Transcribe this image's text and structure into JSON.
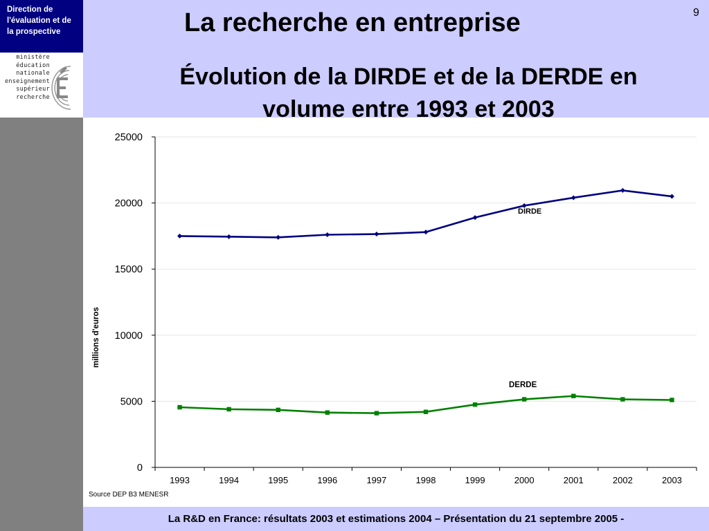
{
  "header": {
    "org_lines": [
      "Direction de",
      "l'évaluation  et de",
      "la prospective"
    ],
    "ministry_lines": [
      "ministère",
      "éducation",
      "nationale",
      "enseignement",
      "supérieur",
      "recherche"
    ],
    "title": "La recherche en entreprise",
    "page_number": "9",
    "subtitle_lines": [
      "Évolution de la DIRDE et de la DERDE en",
      "volume entre 1993 et 2003"
    ]
  },
  "footer": {
    "text": "La R&D en France: résultats 2003 et estimations 2004 – Présentation du 21 septembre 2005 -"
  },
  "colors": {
    "header_band": "#ccccff",
    "logo_bg": "#000080",
    "left_band": "#808080",
    "dirde": "#000080",
    "derde": "#008000"
  },
  "chart_data": {
    "type": "line",
    "title": "",
    "xlabel": "",
    "ylabel": "millions d'euros",
    "source": "Source DEP B3 MENESR",
    "categories": [
      "1993",
      "1994",
      "1995",
      "1996",
      "1997",
      "1998",
      "1999",
      "2000",
      "2001",
      "2002",
      "2003"
    ],
    "ylim": [
      0,
      25000
    ],
    "yticks": [
      0,
      5000,
      10000,
      15000,
      20000,
      25000
    ],
    "grid": true,
    "legend": "none",
    "series": [
      {
        "name": "DIRDE",
        "marker": "diamond",
        "values": [
          17500,
          17450,
          17400,
          17600,
          17650,
          17800,
          18900,
          19800,
          20400,
          20950,
          20500
        ]
      },
      {
        "name": "DERDE",
        "marker": "square",
        "values": [
          4550,
          4400,
          4350,
          4150,
          4100,
          4200,
          4750,
          5150,
          5400,
          5150,
          5100
        ]
      }
    ]
  }
}
